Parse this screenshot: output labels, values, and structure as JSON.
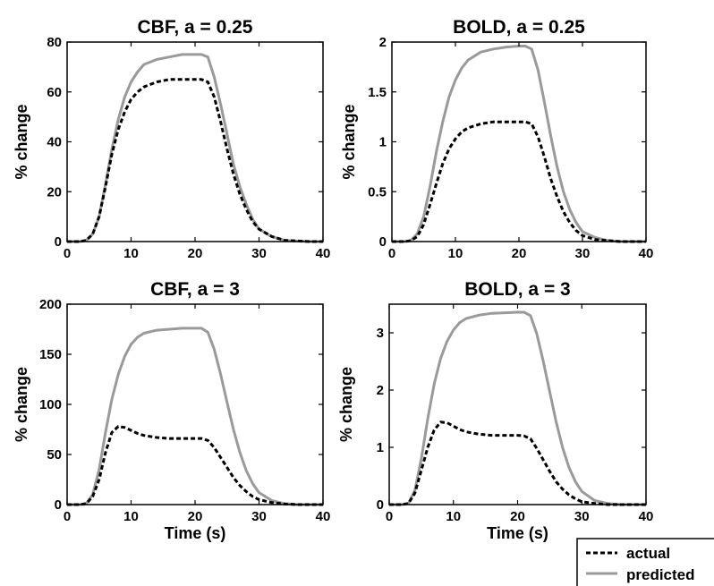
{
  "chart_data": [
    {
      "type": "line",
      "title": "CBF, a = 0.25",
      "ylabel": "% change",
      "xlabel": "",
      "xlim": [
        0,
        40
      ],
      "ylim": [
        0,
        80
      ],
      "xticks": [
        "0",
        "10",
        "20",
        "30",
        "40"
      ],
      "yticks": [
        "0",
        "20",
        "40",
        "60",
        "80"
      ],
      "x": [
        0,
        2,
        3,
        4,
        5,
        6,
        7,
        8,
        9,
        10,
        11,
        12,
        14,
        16,
        18,
        20,
        21,
        22,
        23,
        24,
        25,
        26,
        27,
        28,
        29,
        30,
        32,
        34,
        36,
        38,
        40
      ],
      "series": [
        {
          "name": "actual",
          "values": [
            0,
            0,
            0.5,
            3,
            10,
            22,
            35,
            45,
            52,
            57,
            60,
            62,
            64,
            65,
            65,
            65,
            65,
            64,
            58,
            48,
            37,
            27,
            19,
            13,
            8,
            5,
            2,
            0.5,
            0.2,
            0,
            0
          ]
        },
        {
          "name": "predicted",
          "values": [
            0,
            0,
            0.5,
            3,
            10,
            23,
            37,
            49,
            58,
            64,
            68,
            71,
            73,
            74,
            75,
            75,
            75,
            74,
            66,
            55,
            43,
            31,
            22,
            15,
            9,
            5,
            2,
            0.5,
            0.2,
            0,
            0
          ]
        }
      ]
    },
    {
      "type": "line",
      "title": "BOLD, a = 0.25",
      "ylabel": "% change",
      "xlabel": "",
      "xlim": [
        0,
        40
      ],
      "ylim": [
        0,
        2
      ],
      "xticks": [
        "0",
        "10",
        "20",
        "30",
        "40"
      ],
      "yticks": [
        "0",
        "0.5",
        "1",
        "1.5",
        "2"
      ],
      "x": [
        0,
        2,
        3,
        4,
        5,
        6,
        7,
        8,
        9,
        10,
        11,
        12,
        14,
        16,
        18,
        20,
        21,
        22,
        23,
        24,
        25,
        26,
        27,
        28,
        29,
        30,
        32,
        34,
        36,
        38,
        40
      ],
      "series": [
        {
          "name": "actual",
          "values": [
            0,
            0,
            0.01,
            0.05,
            0.17,
            0.37,
            0.58,
            0.78,
            0.93,
            1.03,
            1.1,
            1.14,
            1.18,
            1.2,
            1.2,
            1.2,
            1.2,
            1.18,
            1.05,
            0.85,
            0.63,
            0.45,
            0.3,
            0.19,
            0.11,
            0.06,
            0.02,
            0.01,
            0,
            0,
            0
          ]
        },
        {
          "name": "predicted",
          "values": [
            0,
            0,
            0.01,
            0.08,
            0.25,
            0.55,
            0.9,
            1.2,
            1.45,
            1.62,
            1.74,
            1.82,
            1.9,
            1.93,
            1.95,
            1.96,
            1.96,
            1.93,
            1.72,
            1.4,
            1.06,
            0.75,
            0.5,
            0.32,
            0.19,
            0.1,
            0.04,
            0.01,
            0,
            0,
            0
          ]
        }
      ]
    },
    {
      "type": "line",
      "title": "CBF, a = 3",
      "ylabel": "% change",
      "xlabel": "Time (s)",
      "xlim": [
        0,
        40
      ],
      "ylim": [
        0,
        200
      ],
      "xticks": [
        "0",
        "10",
        "20",
        "30",
        "40"
      ],
      "yticks": [
        "0",
        "50",
        "100",
        "150",
        "200"
      ],
      "x": [
        0,
        2,
        3,
        4,
        5,
        6,
        7,
        8,
        9,
        10,
        11,
        12,
        14,
        16,
        18,
        20,
        21,
        22,
        23,
        24,
        25,
        26,
        27,
        28,
        29,
        30,
        32,
        34,
        36,
        38,
        40
      ],
      "series": [
        {
          "name": "actual",
          "values": [
            0,
            0,
            1,
            8,
            25,
            52,
            72,
            78,
            77,
            74,
            71,
            69,
            67,
            66,
            66,
            66,
            66,
            64,
            57,
            47,
            37,
            27,
            19,
            13,
            8,
            5,
            2,
            0.5,
            0,
            0,
            0
          ]
        },
        {
          "name": "predicted",
          "values": [
            0,
            0,
            1,
            10,
            35,
            72,
            105,
            130,
            148,
            160,
            167,
            171,
            174,
            175,
            176,
            176,
            176,
            172,
            155,
            130,
            102,
            75,
            52,
            34,
            21,
            12,
            4,
            1,
            0,
            0,
            0
          ]
        }
      ]
    },
    {
      "type": "line",
      "title": "BOLD, a = 3",
      "ylabel": "% change",
      "xlabel": "Time (s)",
      "xlim": [
        0,
        40
      ],
      "ylim": [
        0,
        3.5
      ],
      "xticks": [
        "0",
        "10",
        "20",
        "30",
        "40"
      ],
      "yticks": [
        "0",
        "1",
        "2",
        "3"
      ],
      "x": [
        0,
        2,
        3,
        4,
        5,
        6,
        7,
        8,
        9,
        10,
        11,
        12,
        14,
        16,
        18,
        20,
        21,
        22,
        23,
        24,
        25,
        26,
        27,
        28,
        29,
        30,
        32,
        34,
        36,
        38,
        40
      ],
      "series": [
        {
          "name": "actual",
          "values": [
            0,
            0,
            0.02,
            0.2,
            0.6,
            1.0,
            1.3,
            1.44,
            1.43,
            1.37,
            1.31,
            1.27,
            1.23,
            1.21,
            1.21,
            1.21,
            1.2,
            1.15,
            0.98,
            0.78,
            0.58,
            0.4,
            0.27,
            0.17,
            0.1,
            0.05,
            0.02,
            0,
            0,
            0,
            0
          ]
        },
        {
          "name": "predicted",
          "values": [
            0,
            0,
            0.02,
            0.25,
            0.8,
            1.5,
            2.1,
            2.55,
            2.85,
            3.05,
            3.18,
            3.25,
            3.31,
            3.34,
            3.35,
            3.36,
            3.36,
            3.3,
            2.98,
            2.5,
            1.97,
            1.45,
            1.0,
            0.65,
            0.4,
            0.23,
            0.07,
            0.02,
            0,
            0,
            0
          ]
        }
      ]
    }
  ],
  "legend": {
    "actual": "actual",
    "predicted": "predicted"
  },
  "colors": {
    "actual": "#000000",
    "predicted": "#9a9a9a"
  }
}
